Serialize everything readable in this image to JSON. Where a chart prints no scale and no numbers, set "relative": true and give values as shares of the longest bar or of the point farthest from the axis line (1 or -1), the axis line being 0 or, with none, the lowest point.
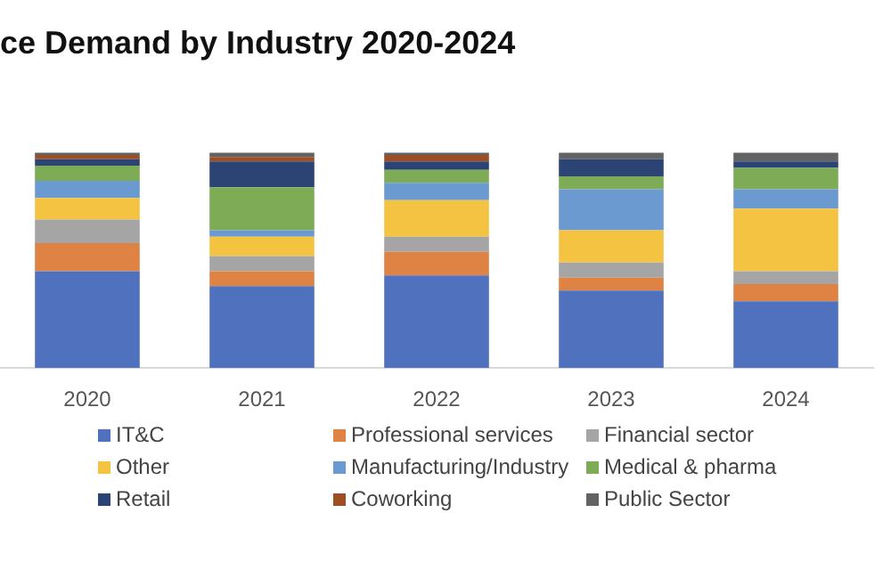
{
  "chart_data": {
    "type": "bar",
    "title": "ce Demand by Industry 2020-2024",
    "stacked": true,
    "relative": true,
    "legend": "bottom",
    "categories": [
      "2020",
      "2021",
      "2022",
      "2023",
      "2024"
    ],
    "series": [
      {
        "name": "IT&C",
        "color": "#4f71be",
        "values": [
          0.45,
          0.38,
          0.43,
          0.36,
          0.31
        ]
      },
      {
        "name": "Professional services",
        "color": "#de8344",
        "values": [
          0.13,
          0.07,
          0.11,
          0.06,
          0.08
        ]
      },
      {
        "name": "Financial sector",
        "color": "#a5a5a5",
        "values": [
          0.11,
          0.07,
          0.07,
          0.07,
          0.06
        ]
      },
      {
        "name": "Other",
        "color": "#f5c342",
        "values": [
          0.1,
          0.09,
          0.17,
          0.15,
          0.29
        ]
      },
      {
        "name": "Manufacturing/Industry",
        "color": "#6a9ad0",
        "values": [
          0.08,
          0.03,
          0.08,
          0.19,
          0.09
        ]
      },
      {
        "name": "Medical & pharma",
        "color": "#7eab55",
        "values": [
          0.07,
          0.2,
          0.06,
          0.06,
          0.1
        ]
      },
      {
        "name": "Retail",
        "color": "#2c4474",
        "values": [
          0.03,
          0.12,
          0.04,
          0.08,
          0.03
        ]
      },
      {
        "name": "Coworking",
        "color": "#9c4f24",
        "values": [
          0.02,
          0.02,
          0.03,
          0,
          0
        ]
      },
      {
        "name": "Public Sector",
        "color": "#636363",
        "values": [
          0.01,
          0.02,
          0.01,
          0.03,
          0.04
        ]
      }
    ]
  }
}
